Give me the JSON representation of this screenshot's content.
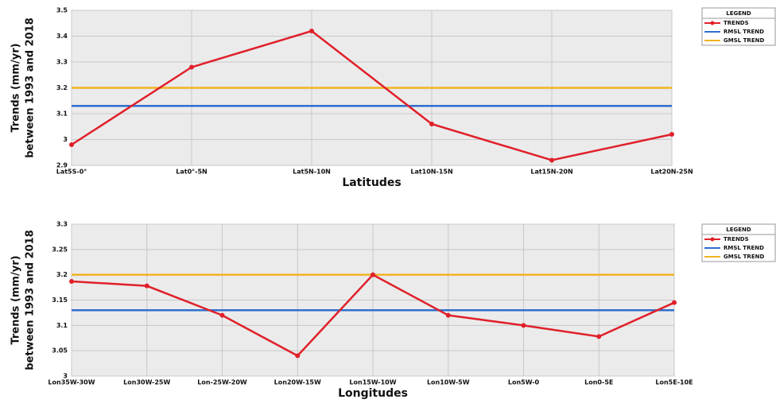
{
  "chart_data": [
    {
      "type": "line",
      "xlabel": "Latitudes",
      "ylabel": [
        "Trends (mm/yr)",
        "between 1993 and 2018"
      ],
      "categories": [
        "Lat5S-0°",
        "Lat0°-5N",
        "Lat5N-10N",
        "Lat10N-15N",
        "Lat15N-20N",
        "Lat20N-25N"
      ],
      "series": [
        {
          "name": "TRENDS",
          "color": "#e0202a",
          "marker": true,
          "values": [
            2.98,
            3.28,
            3.42,
            3.06,
            2.92,
            3.02
          ]
        },
        {
          "name": "RMSL TREND",
          "color": "#2f6fce",
          "marker": false,
          "values": [
            3.13,
            3.13,
            3.13,
            3.13,
            3.13,
            3.13
          ]
        },
        {
          "name": "GMSL TREND",
          "color": "#f0b323",
          "marker": false,
          "values": [
            3.2,
            3.2,
            3.2,
            3.2,
            3.2,
            3.2
          ]
        }
      ],
      "ylim": [
        2.9,
        3.5
      ],
      "yticks": [
        2.9,
        3,
        3.1,
        3.2,
        3.3,
        3.4,
        3.5
      ],
      "grid": true,
      "legend_title": "LEGEND",
      "legend": "outside-right"
    },
    {
      "type": "line",
      "xlabel": "Longitudes",
      "ylabel": [
        "Trends (mm/yr)",
        "between 1993 and 2018"
      ],
      "categories": [
        "Lon35W-30W",
        "Lon30W-25W",
        "Lon-25W-20W",
        "Lon20W-15W",
        "Lon15W-10W",
        "Lon10W-5W",
        "Lon5W-0",
        "Lon0-5E",
        "Lon5E-10E"
      ],
      "series": [
        {
          "name": "TRENDS",
          "color": "#e0202a",
          "marker": true,
          "values": [
            3.187,
            3.178,
            3.12,
            3.04,
            3.2,
            3.12,
            3.1,
            3.078,
            3.145
          ]
        },
        {
          "name": "RMSL TREND",
          "color": "#2f6fce",
          "marker": false,
          "values": [
            3.13,
            3.13,
            3.13,
            3.13,
            3.13,
            3.13,
            3.13,
            3.13,
            3.13
          ]
        },
        {
          "name": "GMSL TREND",
          "color": "#f0b323",
          "marker": false,
          "values": [
            3.2,
            3.2,
            3.2,
            3.2,
            3.2,
            3.2,
            3.2,
            3.2,
            3.2
          ]
        }
      ],
      "ylim": [
        3,
        3.3
      ],
      "yticks": [
        3,
        3.05,
        3.1,
        3.15,
        3.2,
        3.25,
        3.3
      ],
      "grid": true,
      "legend_title": "LEGEND",
      "legend": "outside-right"
    }
  ]
}
